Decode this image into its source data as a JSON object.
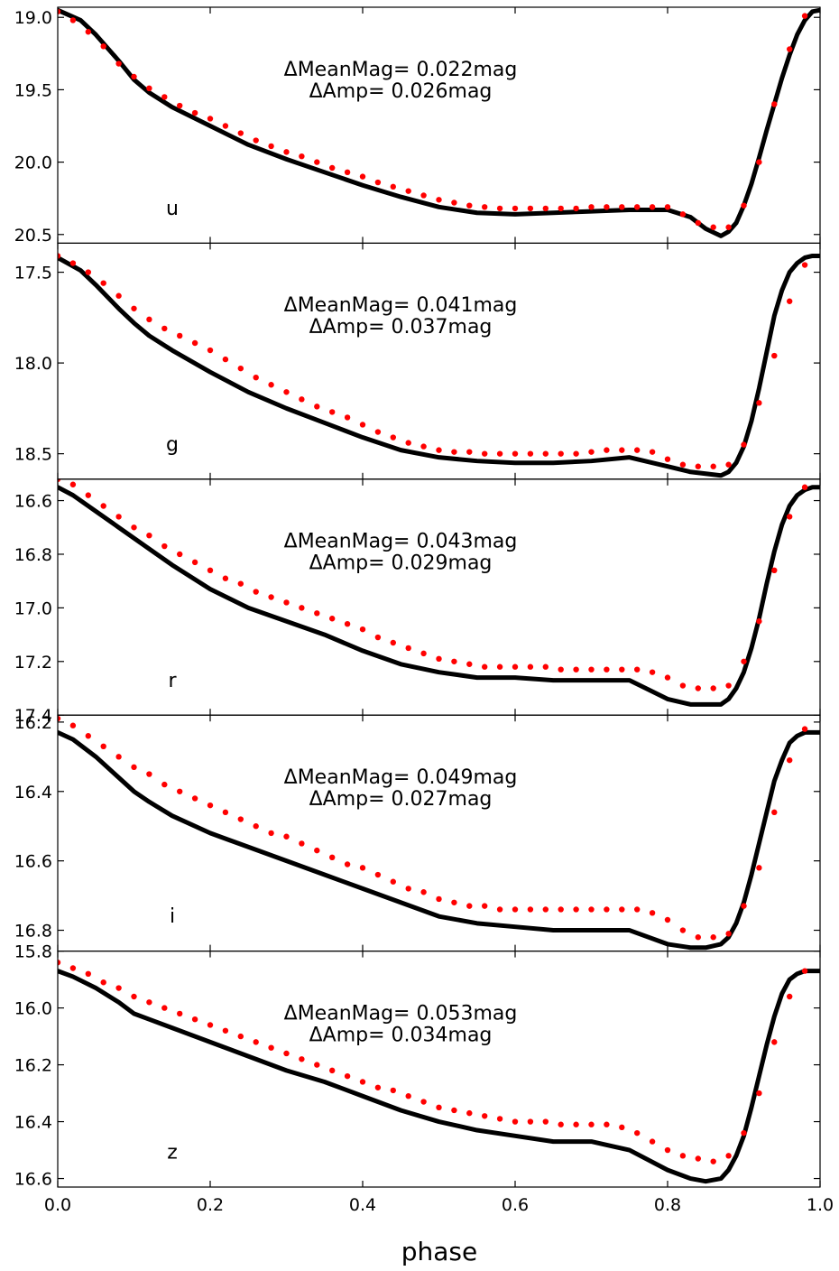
{
  "figure": {
    "xlabel": "phase",
    "xlim": [
      0.0,
      1.0
    ],
    "x_tick_labels": [
      "0.0",
      "0.2",
      "0.4",
      "0.6",
      "0.8",
      "1.0"
    ],
    "colors": {
      "model": "#000000",
      "observed": "#ff0000",
      "axes": "#000000"
    }
  },
  "chart_data": [
    {
      "type": "line",
      "band": "u",
      "delta_mean_mag": "ΔMeanMag= 0.022mag",
      "delta_amp": "ΔAmp= 0.026mag",
      "ylim": [
        20.56,
        18.93
      ],
      "y_inverted": true,
      "y_tick_labels": [
        "19.0",
        "19.5",
        "20.0",
        "20.5"
      ],
      "series": [
        {
          "style": "black-line",
          "x": [
            0.0,
            0.03,
            0.05,
            0.08,
            0.1,
            0.12,
            0.15,
            0.2,
            0.25,
            0.3,
            0.35,
            0.4,
            0.45,
            0.5,
            0.55,
            0.6,
            0.65,
            0.7,
            0.75,
            0.8,
            0.83,
            0.85,
            0.87,
            0.88,
            0.89,
            0.9,
            0.91,
            0.92,
            0.93,
            0.94,
            0.95,
            0.96,
            0.97,
            0.98,
            0.99,
            1.0
          ],
          "y": [
            18.95,
            19.02,
            19.12,
            19.3,
            19.43,
            19.52,
            19.62,
            19.75,
            19.88,
            19.98,
            20.07,
            20.16,
            20.24,
            20.31,
            20.35,
            20.36,
            20.35,
            20.34,
            20.33,
            20.33,
            20.38,
            20.46,
            20.51,
            20.48,
            20.42,
            20.3,
            20.15,
            19.97,
            19.78,
            19.6,
            19.42,
            19.26,
            19.12,
            19.02,
            18.96,
            18.95
          ]
        },
        {
          "style": "red-dots",
          "x": [
            0.0,
            0.02,
            0.04,
            0.06,
            0.08,
            0.1,
            0.12,
            0.14,
            0.16,
            0.18,
            0.2,
            0.22,
            0.24,
            0.26,
            0.28,
            0.3,
            0.32,
            0.34,
            0.36,
            0.38,
            0.4,
            0.42,
            0.44,
            0.46,
            0.48,
            0.5,
            0.52,
            0.54,
            0.56,
            0.58,
            0.6,
            0.62,
            0.64,
            0.66,
            0.68,
            0.7,
            0.72,
            0.74,
            0.76,
            0.78,
            0.8,
            0.82,
            0.84,
            0.86,
            0.88,
            0.9,
            0.92,
            0.94,
            0.96,
            0.98
          ],
          "y": [
            18.96,
            19.02,
            19.1,
            19.2,
            19.32,
            19.41,
            19.49,
            19.55,
            19.61,
            19.66,
            19.7,
            19.75,
            19.8,
            19.85,
            19.89,
            19.93,
            19.96,
            20.0,
            20.04,
            20.07,
            20.1,
            20.14,
            20.17,
            20.2,
            20.23,
            20.26,
            20.28,
            20.3,
            20.31,
            20.32,
            20.32,
            20.32,
            20.32,
            20.32,
            20.32,
            20.31,
            20.31,
            20.31,
            20.31,
            20.31,
            20.31,
            20.36,
            20.42,
            20.45,
            20.45,
            20.3,
            20.0,
            19.6,
            19.22,
            18.99
          ]
        }
      ]
    },
    {
      "type": "line",
      "band": "g",
      "delta_mean_mag": "ΔMeanMag= 0.041mag",
      "delta_amp": "ΔAmp= 0.037mag",
      "ylim": [
        18.64,
        17.34
      ],
      "y_inverted": true,
      "y_tick_labels": [
        "17.5",
        "18.0",
        "18.5"
      ],
      "series": [
        {
          "style": "black-line",
          "x": [
            0.0,
            0.03,
            0.05,
            0.08,
            0.1,
            0.12,
            0.15,
            0.2,
            0.25,
            0.3,
            0.35,
            0.4,
            0.45,
            0.5,
            0.55,
            0.6,
            0.65,
            0.7,
            0.75,
            0.8,
            0.83,
            0.85,
            0.87,
            0.88,
            0.89,
            0.9,
            0.91,
            0.92,
            0.93,
            0.94,
            0.95,
            0.96,
            0.97,
            0.98,
            0.99,
            1.0
          ],
          "y": [
            17.42,
            17.49,
            17.57,
            17.7,
            17.78,
            17.85,
            17.93,
            18.05,
            18.16,
            18.25,
            18.33,
            18.41,
            18.48,
            18.52,
            18.54,
            18.55,
            18.55,
            18.54,
            18.52,
            18.57,
            18.6,
            18.61,
            18.62,
            18.6,
            18.55,
            18.46,
            18.32,
            18.14,
            17.94,
            17.74,
            17.6,
            17.5,
            17.45,
            17.42,
            17.41,
            17.41
          ]
        },
        {
          "style": "red-dots",
          "x": [
            0.0,
            0.02,
            0.04,
            0.06,
            0.08,
            0.1,
            0.12,
            0.14,
            0.16,
            0.18,
            0.2,
            0.22,
            0.24,
            0.26,
            0.28,
            0.3,
            0.32,
            0.34,
            0.36,
            0.38,
            0.4,
            0.42,
            0.44,
            0.46,
            0.48,
            0.5,
            0.52,
            0.54,
            0.56,
            0.58,
            0.6,
            0.62,
            0.64,
            0.66,
            0.68,
            0.7,
            0.72,
            0.74,
            0.76,
            0.78,
            0.8,
            0.82,
            0.84,
            0.86,
            0.88,
            0.9,
            0.92,
            0.94,
            0.96,
            0.98
          ],
          "y": [
            17.41,
            17.45,
            17.5,
            17.56,
            17.63,
            17.7,
            17.76,
            17.81,
            17.85,
            17.89,
            17.93,
            17.98,
            18.03,
            18.08,
            18.12,
            18.16,
            18.2,
            18.24,
            18.27,
            18.3,
            18.34,
            18.38,
            18.41,
            18.44,
            18.46,
            18.48,
            18.49,
            18.49,
            18.5,
            18.5,
            18.5,
            18.5,
            18.5,
            18.5,
            18.5,
            18.49,
            18.48,
            18.48,
            18.48,
            18.49,
            18.53,
            18.56,
            18.57,
            18.57,
            18.56,
            18.45,
            18.22,
            17.96,
            17.66,
            17.46
          ]
        }
      ]
    },
    {
      "type": "line",
      "band": "r",
      "delta_mean_mag": "ΔMeanMag= 0.043mag",
      "delta_amp": "ΔAmp= 0.029mag",
      "ylim": [
        17.4,
        16.52
      ],
      "y_inverted": true,
      "y_tick_labels": [
        "16.6",
        "16.8",
        "17.0",
        "17.2",
        "17.4"
      ],
      "series": [
        {
          "style": "black-line",
          "x": [
            0.0,
            0.02,
            0.05,
            0.08,
            0.1,
            0.12,
            0.15,
            0.2,
            0.25,
            0.3,
            0.35,
            0.4,
            0.45,
            0.5,
            0.55,
            0.6,
            0.65,
            0.7,
            0.75,
            0.8,
            0.83,
            0.85,
            0.87,
            0.88,
            0.89,
            0.9,
            0.91,
            0.92,
            0.93,
            0.94,
            0.95,
            0.96,
            0.97,
            0.98,
            0.99,
            1.0
          ],
          "y": [
            16.55,
            16.58,
            16.64,
            16.7,
            16.74,
            16.78,
            16.84,
            16.93,
            17.0,
            17.05,
            17.1,
            17.16,
            17.21,
            17.24,
            17.26,
            17.26,
            17.27,
            17.27,
            17.27,
            17.34,
            17.36,
            17.36,
            17.36,
            17.34,
            17.3,
            17.24,
            17.15,
            17.04,
            16.91,
            16.79,
            16.69,
            16.62,
            16.58,
            16.56,
            16.55,
            16.55
          ]
        },
        {
          "style": "red-dots",
          "x": [
            0.0,
            0.02,
            0.04,
            0.06,
            0.08,
            0.1,
            0.12,
            0.14,
            0.16,
            0.18,
            0.2,
            0.22,
            0.24,
            0.26,
            0.28,
            0.3,
            0.32,
            0.34,
            0.36,
            0.38,
            0.4,
            0.42,
            0.44,
            0.46,
            0.48,
            0.5,
            0.52,
            0.54,
            0.56,
            0.58,
            0.6,
            0.62,
            0.64,
            0.66,
            0.68,
            0.7,
            0.72,
            0.74,
            0.76,
            0.78,
            0.8,
            0.82,
            0.84,
            0.86,
            0.88,
            0.9,
            0.92,
            0.94,
            0.96,
            0.98
          ],
          "y": [
            16.52,
            16.54,
            16.58,
            16.62,
            16.66,
            16.7,
            16.73,
            16.77,
            16.8,
            16.83,
            16.86,
            16.89,
            16.91,
            16.94,
            16.96,
            16.98,
            17.0,
            17.02,
            17.04,
            17.06,
            17.08,
            17.11,
            17.13,
            17.15,
            17.17,
            17.19,
            17.2,
            17.21,
            17.22,
            17.22,
            17.22,
            17.22,
            17.22,
            17.23,
            17.23,
            17.23,
            17.23,
            17.23,
            17.23,
            17.24,
            17.26,
            17.29,
            17.3,
            17.3,
            17.29,
            17.2,
            17.05,
            16.86,
            16.66,
            16.55
          ]
        }
      ]
    },
    {
      "type": "line",
      "band": "i",
      "delta_mean_mag": "ΔMeanMag= 0.049mag",
      "delta_amp": "ΔAmp= 0.027mag",
      "ylim": [
        16.86,
        16.18
      ],
      "y_inverted": true,
      "y_tick_labels": [
        "16.2",
        "16.4",
        "16.6",
        "16.8"
      ],
      "series": [
        {
          "style": "black-line",
          "x": [
            0.0,
            0.02,
            0.05,
            0.08,
            0.1,
            0.12,
            0.15,
            0.2,
            0.25,
            0.3,
            0.35,
            0.4,
            0.45,
            0.5,
            0.55,
            0.6,
            0.65,
            0.7,
            0.75,
            0.8,
            0.83,
            0.85,
            0.87,
            0.88,
            0.89,
            0.9,
            0.91,
            0.92,
            0.93,
            0.94,
            0.95,
            0.96,
            0.97,
            0.98,
            0.99,
            1.0
          ],
          "y": [
            16.23,
            16.25,
            16.3,
            16.36,
            16.4,
            16.43,
            16.47,
            16.52,
            16.56,
            16.6,
            16.64,
            16.68,
            16.72,
            16.76,
            16.78,
            16.79,
            16.8,
            16.8,
            16.8,
            16.84,
            16.85,
            16.85,
            16.84,
            16.82,
            16.78,
            16.72,
            16.64,
            16.55,
            16.46,
            16.37,
            16.31,
            16.26,
            16.24,
            16.23,
            16.23,
            16.23
          ]
        },
        {
          "style": "red-dots",
          "x": [
            0.0,
            0.02,
            0.04,
            0.06,
            0.08,
            0.1,
            0.12,
            0.14,
            0.16,
            0.18,
            0.2,
            0.22,
            0.24,
            0.26,
            0.28,
            0.3,
            0.32,
            0.34,
            0.36,
            0.38,
            0.4,
            0.42,
            0.44,
            0.46,
            0.48,
            0.5,
            0.52,
            0.54,
            0.56,
            0.58,
            0.6,
            0.62,
            0.64,
            0.66,
            0.68,
            0.7,
            0.72,
            0.74,
            0.76,
            0.78,
            0.8,
            0.82,
            0.84,
            0.86,
            0.88,
            0.9,
            0.92,
            0.94,
            0.96,
            0.98
          ],
          "y": [
            16.19,
            16.21,
            16.24,
            16.27,
            16.3,
            16.33,
            16.35,
            16.38,
            16.4,
            16.42,
            16.44,
            16.46,
            16.48,
            16.5,
            16.52,
            16.53,
            16.55,
            16.57,
            16.59,
            16.61,
            16.62,
            16.64,
            16.66,
            16.68,
            16.69,
            16.71,
            16.72,
            16.73,
            16.73,
            16.74,
            16.74,
            16.74,
            16.74,
            16.74,
            16.74,
            16.74,
            16.74,
            16.74,
            16.74,
            16.75,
            16.77,
            16.8,
            16.82,
            16.82,
            16.81,
            16.73,
            16.62,
            16.46,
            16.31,
            16.22
          ]
        }
      ]
    },
    {
      "type": "line",
      "band": "z",
      "delta_mean_mag": "ΔMeanMag= 0.053mag",
      "delta_amp": "ΔAmp= 0.034mag",
      "ylim": [
        16.63,
        15.8
      ],
      "y_inverted": true,
      "y_tick_labels": [
        "15.8",
        "16.0",
        "16.2",
        "16.4",
        "16.6"
      ],
      "series": [
        {
          "style": "black-line",
          "x": [
            0.0,
            0.02,
            0.05,
            0.08,
            0.1,
            0.12,
            0.15,
            0.2,
            0.25,
            0.3,
            0.35,
            0.4,
            0.45,
            0.5,
            0.55,
            0.6,
            0.65,
            0.7,
            0.75,
            0.8,
            0.83,
            0.85,
            0.87,
            0.88,
            0.89,
            0.9,
            0.91,
            0.92,
            0.93,
            0.94,
            0.95,
            0.96,
            0.97,
            0.98,
            0.99,
            1.0
          ],
          "y": [
            15.87,
            15.89,
            15.93,
            15.98,
            16.02,
            16.04,
            16.07,
            16.12,
            16.17,
            16.22,
            16.26,
            16.31,
            16.36,
            16.4,
            16.43,
            16.45,
            16.47,
            16.47,
            16.5,
            16.57,
            16.6,
            16.61,
            16.6,
            16.57,
            16.52,
            16.45,
            16.35,
            16.24,
            16.13,
            16.03,
            15.95,
            15.9,
            15.88,
            15.87,
            15.87,
            15.87
          ]
        },
        {
          "style": "red-dots",
          "x": [
            0.0,
            0.02,
            0.04,
            0.06,
            0.08,
            0.1,
            0.12,
            0.14,
            0.16,
            0.18,
            0.2,
            0.22,
            0.24,
            0.26,
            0.28,
            0.3,
            0.32,
            0.34,
            0.36,
            0.38,
            0.4,
            0.42,
            0.44,
            0.46,
            0.48,
            0.5,
            0.52,
            0.54,
            0.56,
            0.58,
            0.6,
            0.62,
            0.64,
            0.66,
            0.68,
            0.7,
            0.72,
            0.74,
            0.76,
            0.78,
            0.8,
            0.82,
            0.84,
            0.86,
            0.88,
            0.9,
            0.92,
            0.94,
            0.96,
            0.98
          ],
          "y": [
            15.84,
            15.86,
            15.88,
            15.91,
            15.93,
            15.96,
            15.98,
            16.0,
            16.02,
            16.04,
            16.06,
            16.08,
            16.1,
            16.12,
            16.14,
            16.16,
            16.18,
            16.2,
            16.22,
            16.24,
            16.26,
            16.28,
            16.29,
            16.31,
            16.33,
            16.35,
            16.36,
            16.37,
            16.38,
            16.39,
            16.4,
            16.4,
            16.4,
            16.41,
            16.41,
            16.41,
            16.41,
            16.42,
            16.44,
            16.47,
            16.5,
            16.52,
            16.53,
            16.54,
            16.52,
            16.44,
            16.3,
            16.12,
            15.96,
            15.87
          ]
        }
      ]
    }
  ]
}
